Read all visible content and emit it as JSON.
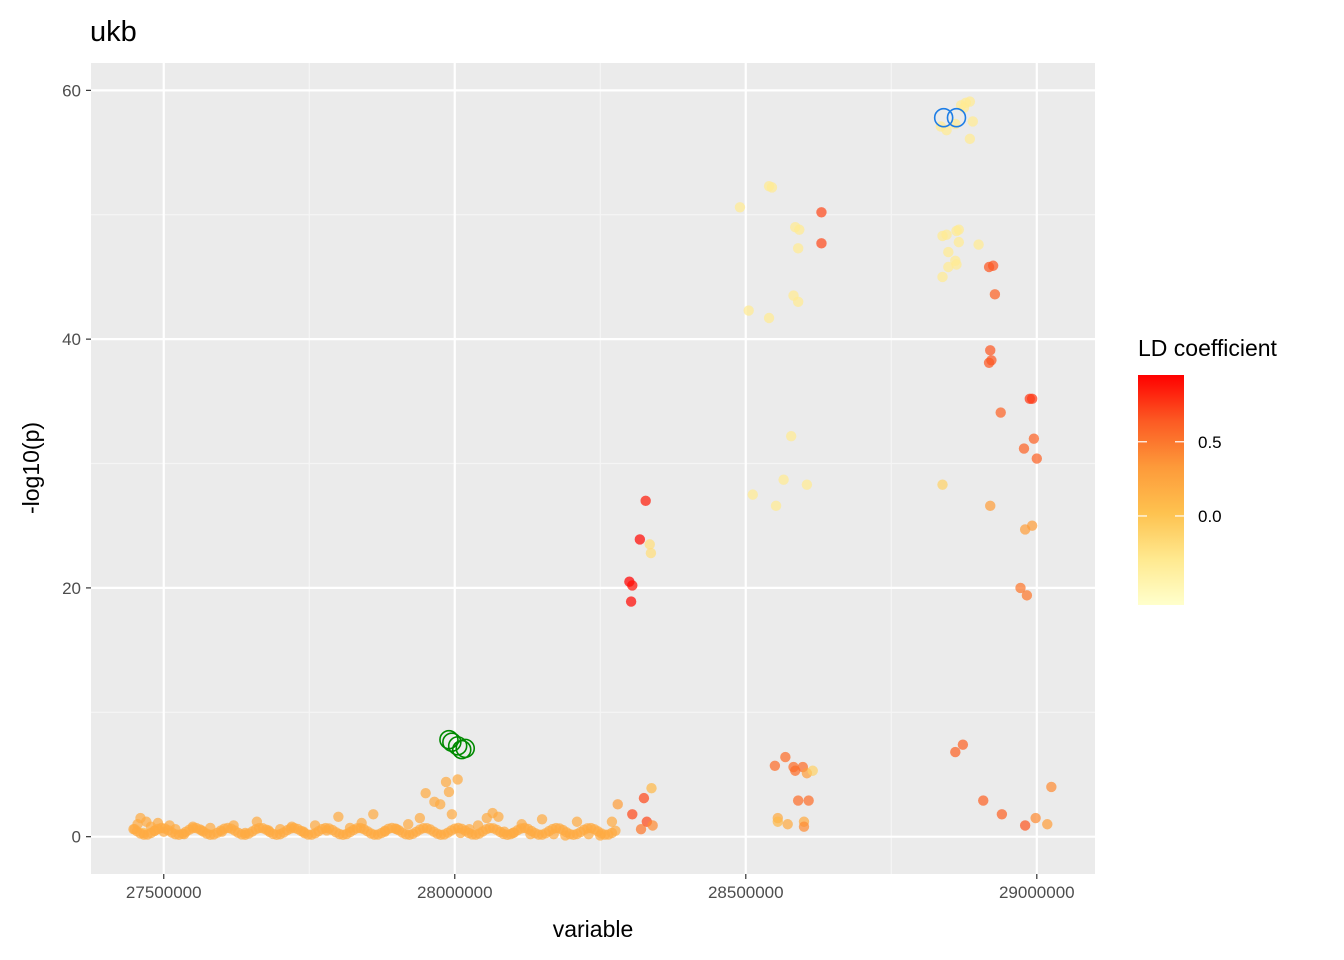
{
  "chart_data": {
    "type": "scatter",
    "title": "ukb",
    "xlabel": "variable",
    "ylabel": "-log10(p)",
    "xlim": [
      27375000,
      29100000
    ],
    "ylim": [
      -3,
      62.2
    ],
    "x_ticks": [
      27500000,
      28000000,
      28500000,
      29000000
    ],
    "x_tick_labels": [
      "27500000",
      "28000000",
      "28500000",
      "29000000"
    ],
    "y_ticks": [
      0,
      20,
      40,
      60
    ],
    "y_tick_labels": [
      "0",
      "20",
      "40",
      "60"
    ],
    "grid": true,
    "legend": {
      "title": "LD coefficient",
      "position": "right",
      "range": [
        -0.6,
        0.95
      ],
      "ticks": [
        0.5,
        0.0
      ],
      "tick_labels": [
        "0.5",
        "0.0"
      ],
      "colors": [
        "#FFFFCC",
        "#FFE98F",
        "#FEC24F",
        "#FD9A3A",
        "#FC5A23",
        "#FF0000"
      ]
    },
    "points": [
      {
        "x": 27450000,
        "y": 0.6,
        "ld": 0.2
      },
      {
        "x": 27455000,
        "y": 1.0,
        "ld": 0.2
      },
      {
        "x": 27460000,
        "y": 1.5,
        "ld": 0.2
      },
      {
        "x": 27465000,
        "y": 0.3,
        "ld": 0.1
      },
      {
        "x": 27470000,
        "y": 1.2,
        "ld": 0.2
      },
      {
        "x": 27478000,
        "y": 0.8,
        "ld": 0.2
      },
      {
        "x": 27485000,
        "y": 0.5,
        "ld": 0.2
      },
      {
        "x": 27490000,
        "y": 1.1,
        "ld": 0.2
      },
      {
        "x": 27500000,
        "y": 0.4,
        "ld": 0.2
      },
      {
        "x": 27510000,
        "y": 0.9,
        "ld": 0.2
      },
      {
        "x": 27520000,
        "y": 0.6,
        "ld": 0.2
      },
      {
        "x": 27535000,
        "y": 0.2,
        "ld": 0.2
      },
      {
        "x": 27550000,
        "y": 0.8,
        "ld": 0.2
      },
      {
        "x": 27565000,
        "y": 0.5,
        "ld": 0.2
      },
      {
        "x": 27580000,
        "y": 0.7,
        "ld": 0.2
      },
      {
        "x": 27600000,
        "y": 0.4,
        "ld": 0.2
      },
      {
        "x": 27620000,
        "y": 0.9,
        "ld": 0.2
      },
      {
        "x": 27640000,
        "y": 0.3,
        "ld": 0.2
      },
      {
        "x": 27660000,
        "y": 1.2,
        "ld": 0.2
      },
      {
        "x": 27680000,
        "y": 0.5,
        "ld": 0.2
      },
      {
        "x": 27700000,
        "y": 0.6,
        "ld": 0.2
      },
      {
        "x": 27720000,
        "y": 0.8,
        "ld": 0.2
      },
      {
        "x": 27740000,
        "y": 0.4,
        "ld": 0.2
      },
      {
        "x": 27760000,
        "y": 0.9,
        "ld": 0.2
      },
      {
        "x": 27780000,
        "y": 0.5,
        "ld": 0.2
      },
      {
        "x": 27800000,
        "y": 1.6,
        "ld": 0.2
      },
      {
        "x": 27820000,
        "y": 0.7,
        "ld": 0.2
      },
      {
        "x": 27840000,
        "y": 1.1,
        "ld": 0.2
      },
      {
        "x": 27860000,
        "y": 1.8,
        "ld": 0.2
      },
      {
        "x": 27880000,
        "y": 0.4,
        "ld": 0.2
      },
      {
        "x": 27900000,
        "y": 0.6,
        "ld": 0.2
      },
      {
        "x": 27920000,
        "y": 1.0,
        "ld": 0.2
      },
      {
        "x": 27940000,
        "y": 1.5,
        "ld": 0.2
      },
      {
        "x": 27950000,
        "y": 3.5,
        "ld": 0.2
      },
      {
        "x": 27965000,
        "y": 2.8,
        "ld": 0.2
      },
      {
        "x": 27975000,
        "y": 2.6,
        "ld": 0.2
      },
      {
        "x": 27985000,
        "y": 4.4,
        "ld": 0.2
      },
      {
        "x": 27990000,
        "y": 3.6,
        "ld": 0.2
      },
      {
        "x": 27995000,
        "y": 1.8,
        "ld": 0.2
      },
      {
        "x": 28005000,
        "y": 4.6,
        "ld": 0.2
      },
      {
        "x": 28010000,
        "y": 0.3,
        "ld": 0.2
      },
      {
        "x": 28025000,
        "y": 0.6,
        "ld": 0.2
      },
      {
        "x": 28040000,
        "y": 0.9,
        "ld": 0.2
      },
      {
        "x": 28055000,
        "y": 1.5,
        "ld": 0.2
      },
      {
        "x": 28065000,
        "y": 1.9,
        "ld": 0.2
      },
      {
        "x": 28075000,
        "y": 1.6,
        "ld": 0.2
      },
      {
        "x": 28085000,
        "y": 0.4,
        "ld": 0.2
      },
      {
        "x": 28100000,
        "y": 0.3,
        "ld": 0.2
      },
      {
        "x": 28115000,
        "y": 1.0,
        "ld": 0.2
      },
      {
        "x": 28130000,
        "y": 0.2,
        "ld": 0.2
      },
      {
        "x": 28150000,
        "y": 1.4,
        "ld": 0.2
      },
      {
        "x": 28170000,
        "y": 0.2,
        "ld": 0.2
      },
      {
        "x": 28190000,
        "y": 0.1,
        "ld": 0.2
      },
      {
        "x": 28210000,
        "y": 1.2,
        "ld": 0.2
      },
      {
        "x": 28230000,
        "y": 0.2,
        "ld": 0.2
      },
      {
        "x": 28250000,
        "y": 0.1,
        "ld": 0.2
      },
      {
        "x": 28270000,
        "y": 1.2,
        "ld": 0.2
      },
      {
        "x": 28280000,
        "y": 2.6,
        "ld": 0.3
      },
      {
        "x": 28300000,
        "y": 20.5,
        "ld": 0.95
      },
      {
        "x": 28305000,
        "y": 20.2,
        "ld": 0.9
      },
      {
        "x": 28303000,
        "y": 18.9,
        "ld": 0.92
      },
      {
        "x": 28318000,
        "y": 23.9,
        "ld": 0.92
      },
      {
        "x": 28328000,
        "y": 27.0,
        "ld": 0.85
      },
      {
        "x": 28335000,
        "y": 23.5,
        "ld": -0.2
      },
      {
        "x": 28337000,
        "y": 22.8,
        "ld": -0.2
      },
      {
        "x": 28305000,
        "y": 1.8,
        "ld": 0.7
      },
      {
        "x": 28325000,
        "y": 3.1,
        "ld": 0.7
      },
      {
        "x": 28330000,
        "y": 1.2,
        "ld": 0.7
      },
      {
        "x": 28338000,
        "y": 3.9,
        "ld": 0.1
      },
      {
        "x": 28320000,
        "y": 0.6,
        "ld": 0.5
      },
      {
        "x": 28340000,
        "y": 0.9,
        "ld": 0.4
      },
      {
        "x": 28490000,
        "y": 50.6,
        "ld": -0.3
      },
      {
        "x": 28540000,
        "y": 52.3,
        "ld": -0.3
      },
      {
        "x": 28545000,
        "y": 52.2,
        "ld": -0.3
      },
      {
        "x": 28630000,
        "y": 50.2,
        "ld": 0.7
      },
      {
        "x": 28630000,
        "y": 47.7,
        "ld": 0.7
      },
      {
        "x": 28585000,
        "y": 49.0,
        "ld": -0.3
      },
      {
        "x": 28592000,
        "y": 48.8,
        "ld": -0.3
      },
      {
        "x": 28590000,
        "y": 47.3,
        "ld": -0.3
      },
      {
        "x": 28582000,
        "y": 43.5,
        "ld": -0.3
      },
      {
        "x": 28590000,
        "y": 43.0,
        "ld": -0.3
      },
      {
        "x": 28505000,
        "y": 42.3,
        "ld": -0.3
      },
      {
        "x": 28540000,
        "y": 41.7,
        "ld": -0.3
      },
      {
        "x": 28578000,
        "y": 32.2,
        "ld": -0.3
      },
      {
        "x": 28565000,
        "y": 28.7,
        "ld": -0.3
      },
      {
        "x": 28605000,
        "y": 28.3,
        "ld": -0.3
      },
      {
        "x": 28512000,
        "y": 27.5,
        "ld": -0.3
      },
      {
        "x": 28552000,
        "y": 26.6,
        "ld": -0.3
      },
      {
        "x": 28550000,
        "y": 5.7,
        "ld": 0.55
      },
      {
        "x": 28568000,
        "y": 6.4,
        "ld": 0.55
      },
      {
        "x": 28582000,
        "y": 5.6,
        "ld": 0.55
      },
      {
        "x": 28585000,
        "y": 5.3,
        "ld": 0.55
      },
      {
        "x": 28598000,
        "y": 5.6,
        "ld": 0.55
      },
      {
        "x": 28605000,
        "y": 5.1,
        "ld": 0.3
      },
      {
        "x": 28615000,
        "y": 5.3,
        "ld": -0.1
      },
      {
        "x": 28590000,
        "y": 2.9,
        "ld": 0.55
      },
      {
        "x": 28608000,
        "y": 2.9,
        "ld": 0.55
      },
      {
        "x": 28555000,
        "y": 1.5,
        "ld": 0.2
      },
      {
        "x": 28555000,
        "y": 1.2,
        "ld": 0.1
      },
      {
        "x": 28572000,
        "y": 1.0,
        "ld": 0.2
      },
      {
        "x": 28600000,
        "y": 1.2,
        "ld": 0.2
      },
      {
        "x": 28600000,
        "y": 0.8,
        "ld": 0.4
      },
      {
        "x": 28835000,
        "y": 57.1,
        "ld": -0.3
      },
      {
        "x": 28845000,
        "y": 56.8,
        "ld": -0.3
      },
      {
        "x": 28860000,
        "y": 57.3,
        "ld": -0.3
      },
      {
        "x": 28870000,
        "y": 58.8,
        "ld": -0.3
      },
      {
        "x": 28878000,
        "y": 59.0,
        "ld": -0.3
      },
      {
        "x": 28885000,
        "y": 59.1,
        "ld": -0.3
      },
      {
        "x": 28890000,
        "y": 57.5,
        "ld": -0.3
      },
      {
        "x": 28885000,
        "y": 56.1,
        "ld": -0.3
      },
      {
        "x": 28875000,
        "y": 58.6,
        "ld": -0.3
      },
      {
        "x": 28838000,
        "y": 48.3,
        "ld": -0.3
      },
      {
        "x": 28845000,
        "y": 48.4,
        "ld": -0.3
      },
      {
        "x": 28862000,
        "y": 48.7,
        "ld": -0.3
      },
      {
        "x": 28866000,
        "y": 48.8,
        "ld": -0.3
      },
      {
        "x": 28900000,
        "y": 47.6,
        "ld": -0.3
      },
      {
        "x": 28866000,
        "y": 47.8,
        "ld": -0.3
      },
      {
        "x": 28848000,
        "y": 47.0,
        "ld": -0.3
      },
      {
        "x": 28860000,
        "y": 46.3,
        "ld": -0.3
      },
      {
        "x": 28862000,
        "y": 46.0,
        "ld": -0.3
      },
      {
        "x": 28848000,
        "y": 45.8,
        "ld": -0.3
      },
      {
        "x": 28838000,
        "y": 45.0,
        "ld": -0.3
      },
      {
        "x": 28918000,
        "y": 45.8,
        "ld": 0.65
      },
      {
        "x": 28925000,
        "y": 45.9,
        "ld": 0.65
      },
      {
        "x": 28928000,
        "y": 43.6,
        "ld": 0.6
      },
      {
        "x": 28920000,
        "y": 39.1,
        "ld": 0.65
      },
      {
        "x": 28922000,
        "y": 38.3,
        "ld": 0.65
      },
      {
        "x": 28918000,
        "y": 38.1,
        "ld": 0.65
      },
      {
        "x": 28938000,
        "y": 34.1,
        "ld": 0.6
      },
      {
        "x": 28988000,
        "y": 35.2,
        "ld": 0.75
      },
      {
        "x": 28992000,
        "y": 35.2,
        "ld": 0.75
      },
      {
        "x": 28995000,
        "y": 32.0,
        "ld": 0.6
      },
      {
        "x": 28978000,
        "y": 31.2,
        "ld": 0.6
      },
      {
        "x": 29000000,
        "y": 30.4,
        "ld": 0.6
      },
      {
        "x": 28920000,
        "y": 26.6,
        "ld": 0.3
      },
      {
        "x": 28838000,
        "y": 28.3,
        "ld": -0.1
      },
      {
        "x": 28980000,
        "y": 24.7,
        "ld": 0.3
      },
      {
        "x": 28992000,
        "y": 25.0,
        "ld": 0.3
      },
      {
        "x": 28972000,
        "y": 20.0,
        "ld": 0.5
      },
      {
        "x": 28983000,
        "y": 19.4,
        "ld": 0.5
      },
      {
        "x": 28860000,
        "y": 6.8,
        "ld": 0.6
      },
      {
        "x": 28873000,
        "y": 7.4,
        "ld": 0.6
      },
      {
        "x": 28908000,
        "y": 2.9,
        "ld": 0.6
      },
      {
        "x": 28940000,
        "y": 1.8,
        "ld": 0.6
      },
      {
        "x": 28980000,
        "y": 0.9,
        "ld": 0.65
      },
      {
        "x": 28998000,
        "y": 1.5,
        "ld": 0.4
      },
      {
        "x": 29018000,
        "y": 1.0,
        "ld": 0.3
      },
      {
        "x": 29025000,
        "y": 4.0,
        "ld": 0.4
      }
    ],
    "highlight_green": [
      {
        "x": 27990000,
        "y": 7.8
      },
      {
        "x": 27995000,
        "y": 7.6
      },
      {
        "x": 28005000,
        "y": 7.3
      },
      {
        "x": 28012000,
        "y": 7.0
      },
      {
        "x": 28018000,
        "y": 7.1
      }
    ],
    "highlight_blue": [
      {
        "x": 28840000,
        "y": 57.8
      },
      {
        "x": 28862000,
        "y": 57.8
      }
    ]
  }
}
